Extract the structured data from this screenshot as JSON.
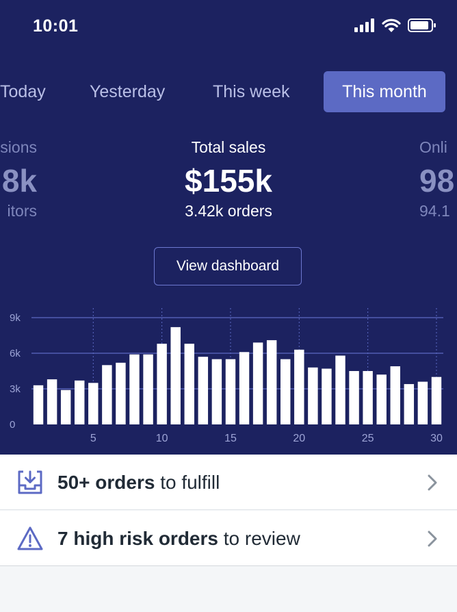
{
  "status_bar": {
    "time": "10:01"
  },
  "tabs": [
    {
      "label": "Today",
      "active": false
    },
    {
      "label": "Yesterday",
      "active": false
    },
    {
      "label": "This week",
      "active": false
    },
    {
      "label": "This month",
      "active": true
    }
  ],
  "metrics": {
    "left": {
      "label": "sions",
      "value": "8k",
      "sub": "itors"
    },
    "center": {
      "label": "Total sales",
      "value": "$155k",
      "sub": "3.42k orders"
    },
    "right": {
      "label": "Onli",
      "value": "98",
      "sub": "94.1"
    }
  },
  "dashboard_button": {
    "label": "View dashboard"
  },
  "chart_data": {
    "type": "bar",
    "title": "",
    "xlabel": "",
    "ylabel": "",
    "x": [
      1,
      2,
      3,
      4,
      5,
      6,
      7,
      8,
      9,
      10,
      11,
      12,
      13,
      14,
      15,
      16,
      17,
      18,
      19,
      20,
      21,
      22,
      23,
      24,
      25,
      26,
      27,
      28,
      29,
      30
    ],
    "values": [
      3.3,
      3.8,
      2.9,
      3.7,
      3.5,
      5.0,
      5.2,
      5.9,
      5.9,
      6.8,
      8.2,
      6.8,
      5.7,
      5.5,
      5.5,
      6.1,
      6.9,
      7.1,
      5.5,
      6.3,
      4.8,
      4.7,
      5.8,
      4.5,
      4.5,
      4.2,
      4.9,
      3.4,
      3.6,
      4.0
    ],
    "ylim": [
      0,
      9
    ],
    "y_ticks": [
      "0",
      "3k",
      "6k",
      "9k"
    ],
    "y_tick_values": [
      0,
      3,
      6,
      9
    ],
    "x_ticks": [
      "5",
      "10",
      "15",
      "20",
      "25",
      "30"
    ],
    "x_tick_values": [
      5,
      10,
      15,
      20,
      25,
      30
    ],
    "grid": true,
    "colors": {
      "bar": "#ffffff",
      "grid": "#5c6ac4",
      "tick": "#9da4d6"
    }
  },
  "tasks": [
    {
      "bold": "50+ orders",
      "rest": " to fulfill",
      "icon": "inbox-download-icon"
    },
    {
      "bold": "7 high risk orders",
      "rest": " to review",
      "icon": "warning-triangle-icon"
    }
  ],
  "colors": {
    "hero_bg": "#1c2260",
    "accent": "#5c6ac4",
    "page_bg": "#f4f6f8"
  }
}
